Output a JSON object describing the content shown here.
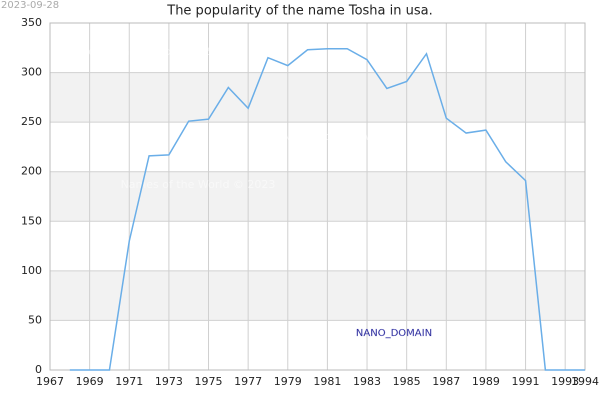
{
  "chart_data": {
    "type": "line",
    "title": "The popularity of the name Tosha in usa.",
    "date_stamp": "2023-09-28",
    "watermarks": [
      "Names of the World © 2023",
      "Names of the World © 2023",
      "Names of the World © 2023"
    ],
    "badge": "NANO_DOMAIN",
    "x": [
      1968,
      1969,
      1970,
      1971,
      1972,
      1973,
      1974,
      1975,
      1976,
      1977,
      1978,
      1979,
      1980,
      1981,
      1982,
      1983,
      1984,
      1985,
      1986,
      1987,
      1988,
      1989,
      1990,
      1991,
      1992,
      1993,
      1994
    ],
    "series": [
      {
        "name": "Tosha",
        "color": "#6aaee8",
        "values": [
          0,
          0,
          0,
          130,
          216,
          217,
          251,
          253,
          285,
          264,
          315,
          307,
          323,
          324,
          324,
          313,
          284,
          291,
          319,
          254,
          239,
          242,
          210,
          191,
          0,
          0,
          0
        ]
      }
    ],
    "xlim": [
      1967,
      1994
    ],
    "xticks": [
      1967,
      1969,
      1971,
      1973,
      1975,
      1977,
      1979,
      1981,
      1983,
      1985,
      1987,
      1989,
      1991,
      1993,
      1994
    ],
    "ylim": [
      0,
      350
    ],
    "yticks": [
      0,
      50,
      100,
      150,
      200,
      250,
      300,
      350
    ],
    "grid": true
  }
}
